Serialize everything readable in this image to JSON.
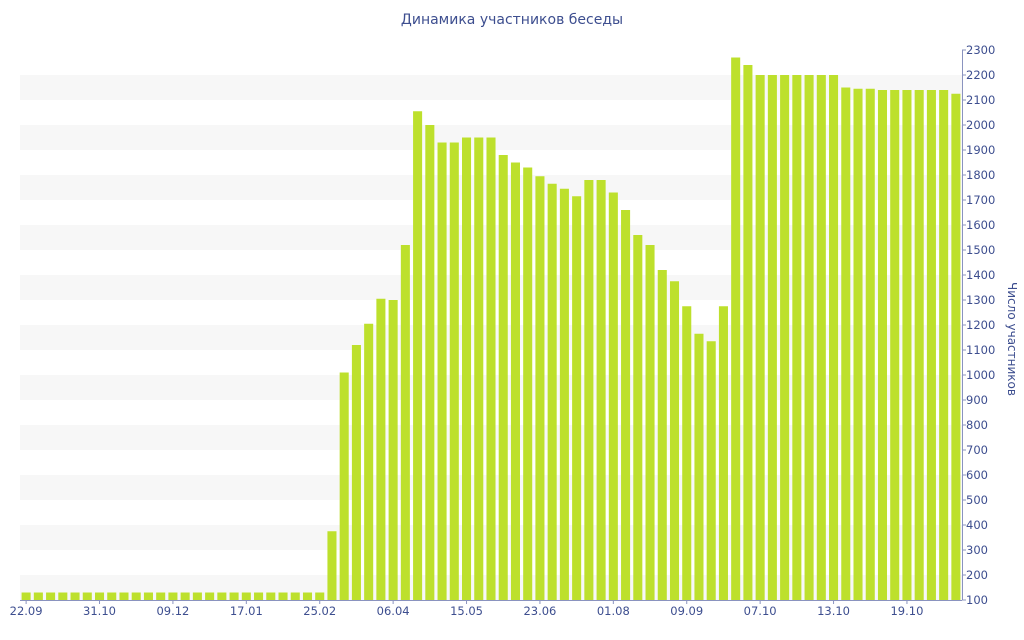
{
  "chart_data": {
    "type": "bar",
    "title": "Динамика участников беседы",
    "xlabel": "",
    "ylabel": "Число участников",
    "ylim": [
      100,
      2300
    ],
    "y_ticks": [
      100,
      200,
      300,
      400,
      500,
      600,
      700,
      800,
      900,
      1000,
      1100,
      1200,
      1300,
      1400,
      1500,
      1600,
      1700,
      1800,
      1900,
      2000,
      2100,
      2200,
      2300
    ],
    "y_axis_side": "right",
    "x_tick_labels": [
      {
        "index": 0,
        "label": "22.09"
      },
      {
        "index": 6,
        "label": "31.10"
      },
      {
        "index": 12,
        "label": "09.12"
      },
      {
        "index": 18,
        "label": "17.01"
      },
      {
        "index": 24,
        "label": "25.02"
      },
      {
        "index": 30,
        "label": "06.04"
      },
      {
        "index": 36,
        "label": "15.05"
      },
      {
        "index": 42,
        "label": "23.06"
      },
      {
        "index": 48,
        "label": "01.08"
      },
      {
        "index": 54,
        "label": "09.09"
      },
      {
        "index": 60,
        "label": "07.10"
      },
      {
        "index": 66,
        "label": "13.10"
      },
      {
        "index": 72,
        "label": "19.10"
      }
    ],
    "values": [
      130,
      130,
      130,
      130,
      130,
      130,
      130,
      130,
      130,
      130,
      130,
      130,
      130,
      130,
      130,
      130,
      130,
      130,
      130,
      130,
      130,
      130,
      130,
      130,
      130,
      375,
      1010,
      1120,
      1205,
      1305,
      1300,
      1520,
      2055,
      2000,
      1930,
      1930,
      1950,
      1950,
      1950,
      1880,
      1850,
      1830,
      1795,
      1765,
      1745,
      1715,
      1780,
      1780,
      1730,
      1660,
      1560,
      1520,
      1420,
      1375,
      1275,
      1165,
      1135,
      1275,
      2270,
      2240,
      2200,
      2200,
      2200,
      2200,
      2200,
      2200,
      2200,
      2150,
      2145,
      2145,
      2140,
      2140,
      2140,
      2140,
      2140,
      2140,
      2125
    ],
    "bar_color": "#bde02c",
    "grid_band_color": "#f7f7f7",
    "axis_text_color": "#3d4e8f",
    "grid": "horizontal bands",
    "legend": "none"
  }
}
